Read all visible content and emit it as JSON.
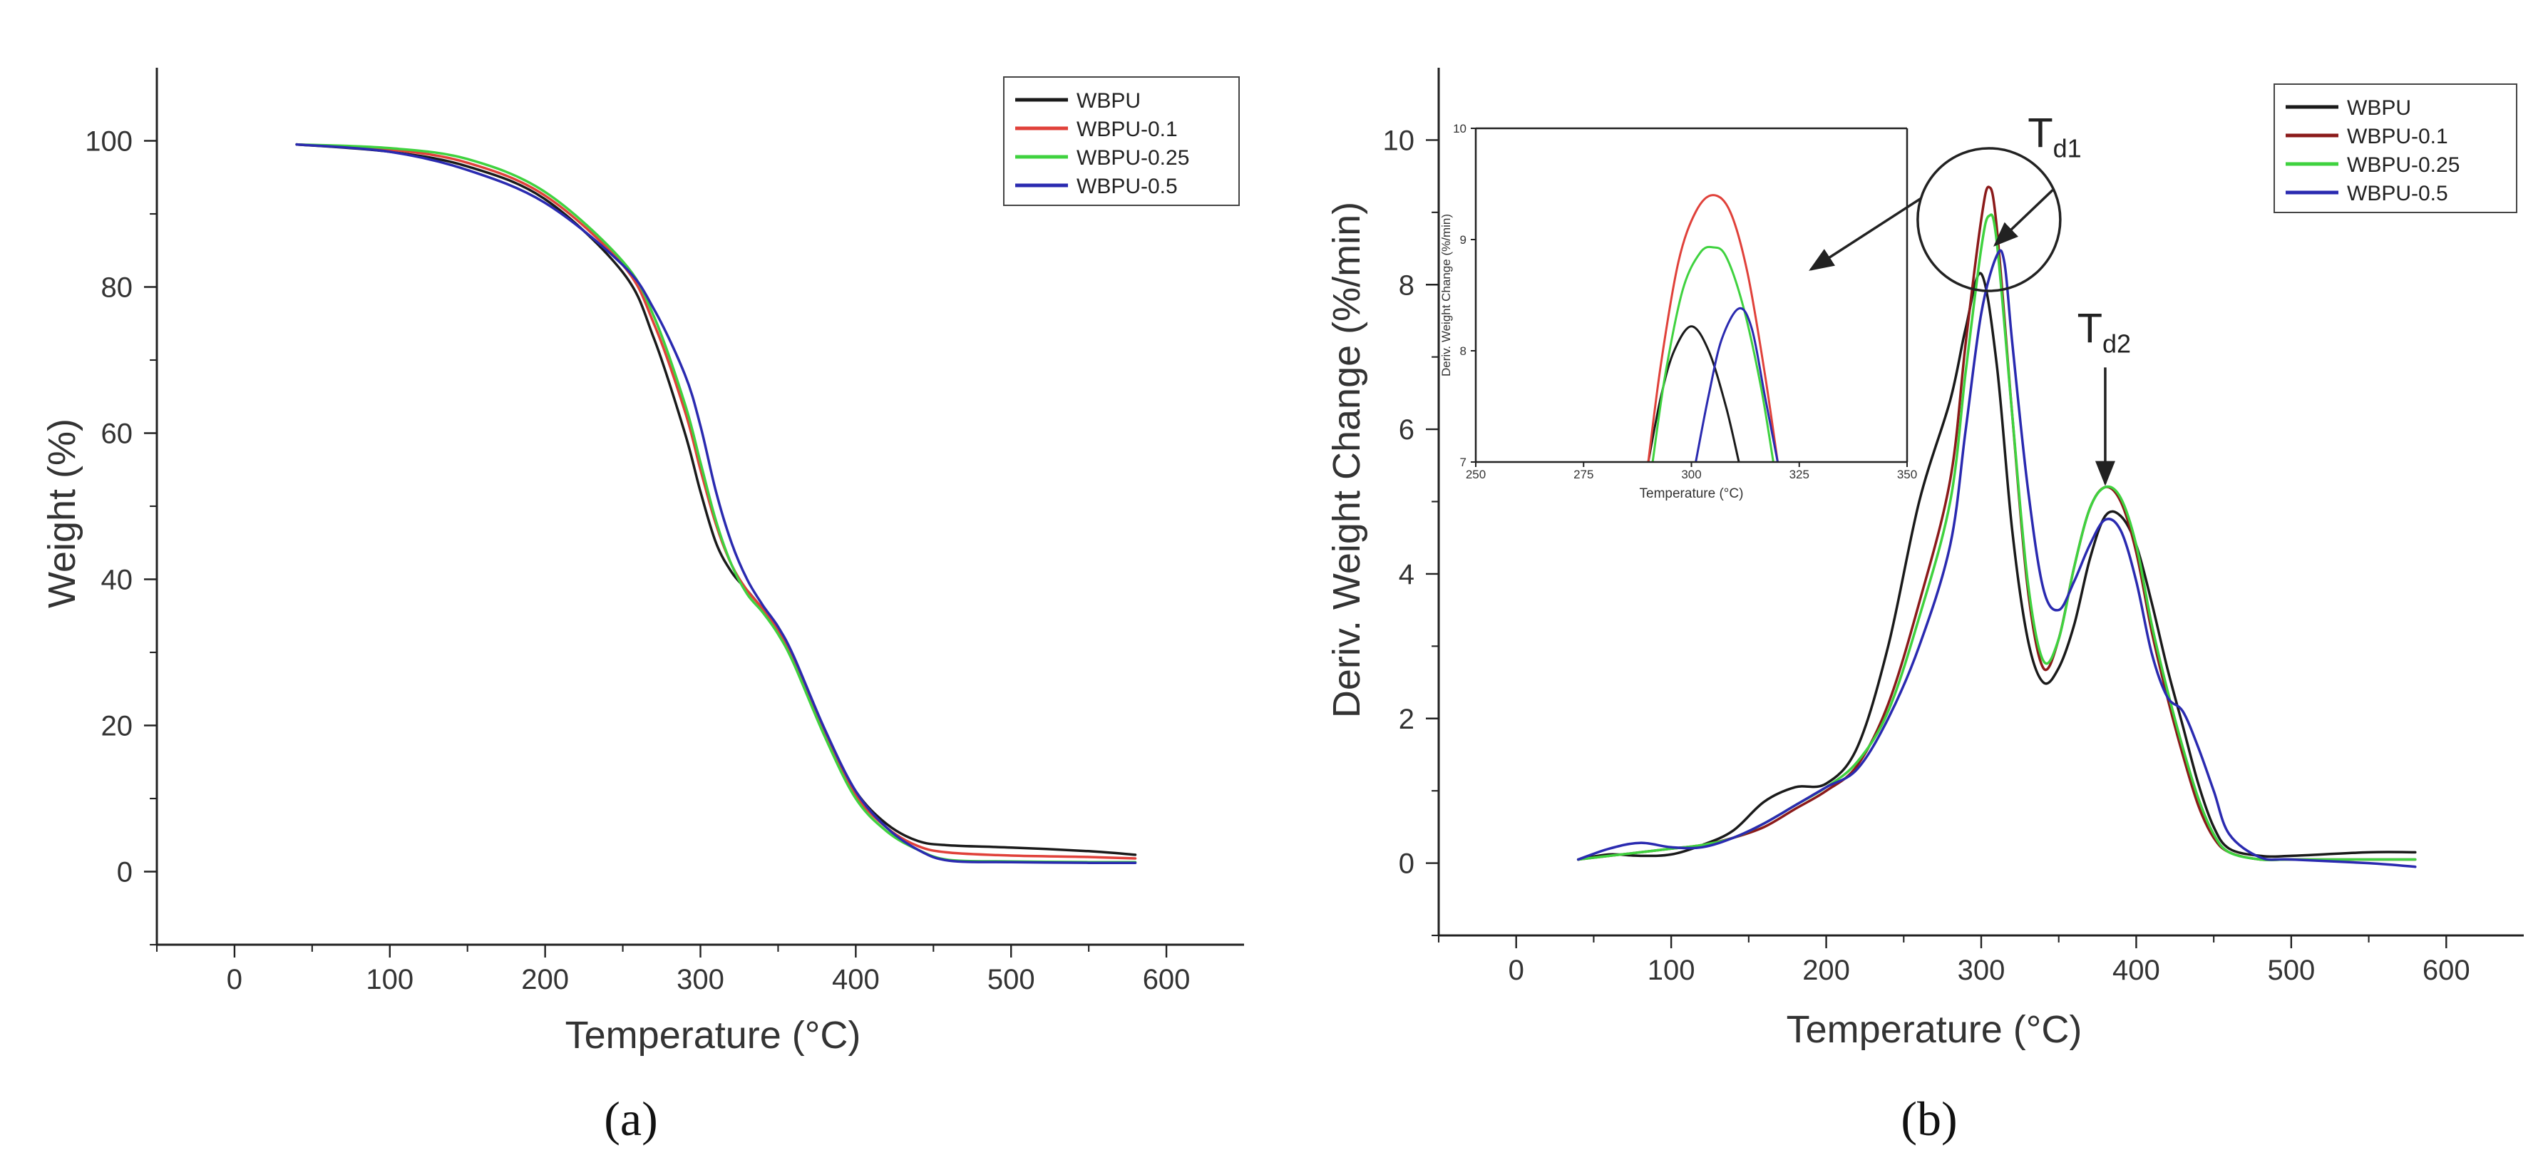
{
  "figure": {
    "caption_a": "(a)",
    "caption_b": "(b)"
  },
  "chart_data": [
    {
      "type": "line",
      "panel": "a",
      "title": "",
      "xlabel": "Temperature (°C)",
      "ylabel": "Weight (%)",
      "xlim": [
        -50,
        650
      ],
      "ylim": [
        -10,
        110
      ],
      "xticks": [
        0,
        100,
        200,
        300,
        400,
        500,
        600
      ],
      "yticks": [
        0,
        20,
        40,
        60,
        80,
        100
      ],
      "legend_position": "top-right",
      "series": [
        {
          "name": "WBPU",
          "color": "#1a1a1a",
          "x": [
            40,
            100,
            150,
            200,
            250,
            270,
            290,
            300,
            310,
            320,
            330,
            340,
            350,
            360,
            380,
            400,
            420,
            440,
            460,
            500,
            550,
            580
          ],
          "y": [
            99.5,
            98.5,
            96.5,
            92,
            82,
            73,
            60,
            52,
            45,
            41,
            38.5,
            36,
            33.5,
            29,
            19,
            11,
            6.5,
            4.2,
            3.6,
            3.3,
            2.8,
            2.3
          ]
        },
        {
          "name": "WBPU-0.1",
          "color": "#e0413a",
          "x": [
            40,
            100,
            150,
            200,
            250,
            270,
            290,
            300,
            310,
            320,
            330,
            340,
            350,
            360,
            380,
            400,
            420,
            440,
            460,
            500,
            550,
            580
          ],
          "y": [
            99.5,
            98.8,
            97,
            92.5,
            83,
            75,
            63,
            55,
            47.5,
            42,
            38.5,
            36,
            33,
            29,
            19,
            10.5,
            6,
            3.5,
            2.6,
            2.2,
            2.0,
            1.8
          ]
        },
        {
          "name": "WBPU-0.25",
          "color": "#3fd23f",
          "x": [
            40,
            100,
            150,
            200,
            250,
            270,
            290,
            300,
            310,
            320,
            330,
            340,
            350,
            360,
            380,
            400,
            420,
            440,
            460,
            500,
            550,
            580
          ],
          "y": [
            99.5,
            99,
            97.5,
            93,
            83.5,
            76,
            64,
            56,
            48,
            42,
            38,
            35.5,
            32.5,
            28.5,
            18.5,
            10,
            5.5,
            3,
            1.6,
            1.4,
            1.3,
            1.3
          ]
        },
        {
          "name": "WBPU-0.5",
          "color": "#2a2ab0",
          "x": [
            40,
            100,
            150,
            200,
            250,
            270,
            290,
            300,
            310,
            320,
            330,
            340,
            350,
            360,
            380,
            400,
            420,
            440,
            460,
            500,
            550,
            580
          ],
          "y": [
            99.5,
            98.5,
            96,
            91.5,
            83,
            77,
            68,
            61,
            52,
            45,
            40,
            36.5,
            33.5,
            29.5,
            19.5,
            11,
            6,
            3,
            1.5,
            1.3,
            1.2,
            1.2
          ]
        }
      ]
    },
    {
      "type": "line",
      "panel": "b",
      "title": "",
      "xlabel": "Temperature (°C)",
      "ylabel": "Deriv. Weight Change (%/min)",
      "xlim": [
        -50,
        650
      ],
      "ylim": [
        -1,
        11
      ],
      "xticks": [
        0,
        100,
        200,
        300,
        400,
        500,
        600
      ],
      "yticks": [
        0,
        2,
        4,
        6,
        8,
        10
      ],
      "legend_position": "top-right",
      "annotations": [
        {
          "text": "T",
          "sub": "d1",
          "x": 330,
          "y": 9.9
        },
        {
          "text": "T",
          "sub": "d2",
          "x": 378,
          "y": 7.2
        }
      ],
      "series": [
        {
          "name": "WBPU",
          "color": "#1a1a1a",
          "x": [
            40,
            60,
            80,
            100,
            120,
            140,
            160,
            180,
            200,
            220,
            240,
            260,
            280,
            290,
            300,
            310,
            320,
            330,
            340,
            350,
            360,
            370,
            380,
            390,
            400,
            410,
            420,
            430,
            440,
            450,
            460,
            480,
            500,
            550,
            580
          ],
          "y": [
            0.05,
            0.12,
            0.1,
            0.12,
            0.25,
            0.45,
            0.85,
            1.05,
            1.1,
            1.6,
            3.0,
            5.0,
            6.4,
            7.4,
            8.15,
            6.9,
            4.6,
            3.1,
            2.5,
            2.7,
            3.3,
            4.2,
            4.8,
            4.8,
            4.4,
            3.6,
            2.7,
            1.9,
            1.1,
            0.5,
            0.2,
            0.1,
            0.1,
            0.15,
            0.15
          ]
        },
        {
          "name": "WBPU-0.1",
          "color": "#8b1a1a",
          "x": [
            40,
            60,
            80,
            100,
            120,
            140,
            160,
            180,
            200,
            220,
            240,
            260,
            280,
            290,
            300,
            305,
            310,
            320,
            330,
            340,
            350,
            360,
            370,
            380,
            390,
            400,
            410,
            420,
            430,
            440,
            450,
            460,
            480,
            500,
            550,
            580
          ],
          "y": [
            0.05,
            0.1,
            0.15,
            0.2,
            0.25,
            0.35,
            0.5,
            0.75,
            1.0,
            1.35,
            2.2,
            3.6,
            5.3,
            7.2,
            8.9,
            9.35,
            8.8,
            6.2,
            3.8,
            2.7,
            3.1,
            4.1,
            4.9,
            5.2,
            5.0,
            4.3,
            3.2,
            2.3,
            1.5,
            0.8,
            0.35,
            0.15,
            0.05,
            0.05,
            0.05,
            0.05
          ]
        },
        {
          "name": "WBPU-0.25",
          "color": "#3fd23f",
          "x": [
            40,
            60,
            80,
            100,
            120,
            140,
            160,
            180,
            200,
            220,
            240,
            260,
            280,
            290,
            300,
            305,
            310,
            320,
            330,
            340,
            350,
            360,
            370,
            380,
            390,
            400,
            410,
            420,
            430,
            440,
            450,
            460,
            480,
            500,
            550,
            580
          ],
          "y": [
            0.05,
            0.1,
            0.15,
            0.2,
            0.25,
            0.35,
            0.55,
            0.8,
            1.05,
            1.4,
            2.1,
            3.4,
            5.0,
            6.8,
            8.5,
            8.95,
            8.6,
            6.2,
            3.9,
            2.8,
            3.1,
            4.1,
            4.9,
            5.2,
            5.05,
            4.4,
            3.3,
            2.4,
            1.6,
            0.9,
            0.4,
            0.15,
            0.05,
            0.05,
            0.05,
            0.05
          ]
        },
        {
          "name": "WBPU-0.5",
          "color": "#2a2ab0",
          "x": [
            40,
            60,
            80,
            100,
            120,
            140,
            160,
            180,
            200,
            220,
            240,
            260,
            280,
            290,
            300,
            310,
            315,
            320,
            330,
            340,
            350,
            360,
            370,
            380,
            390,
            400,
            410,
            420,
            430,
            440,
            450,
            460,
            480,
            500,
            550,
            580
          ],
          "y": [
            0.05,
            0.2,
            0.28,
            0.22,
            0.22,
            0.35,
            0.55,
            0.8,
            1.05,
            1.3,
            2.0,
            3.0,
            4.4,
            6.0,
            7.6,
            8.4,
            8.3,
            7.2,
            5.2,
            3.8,
            3.5,
            3.9,
            4.4,
            4.75,
            4.6,
            3.9,
            2.9,
            2.3,
            2.1,
            1.6,
            1.0,
            0.4,
            0.08,
            0.05,
            0.0,
            -0.05
          ]
        }
      ],
      "inset": {
        "type": "line",
        "xlabel": "Temperature (°C)",
        "ylabel": "Deriv. Weight Change (%/min)",
        "xlim": [
          250,
          350
        ],
        "ylim": [
          7,
          10
        ],
        "xticks": [
          250,
          275,
          300,
          325,
          350
        ],
        "yticks": [
          7,
          8,
          9,
          10
        ],
        "series": [
          {
            "name": "WBPU",
            "color": "#1a1a1a",
            "x": [
              290,
              293,
              296,
              300,
              304,
              308,
              311
            ],
            "y": [
              7.0,
              7.6,
              8.0,
              8.22,
              8.0,
              7.5,
              7.0
            ]
          },
          {
            "name": "WBPU-0.1",
            "color": "#e0413a",
            "x": [
              290,
              293,
              297,
              301,
              305,
              309,
              313,
              317,
              320
            ],
            "y": [
              7.0,
              7.9,
              8.8,
              9.25,
              9.4,
              9.25,
              8.7,
              7.8,
              7.0
            ]
          },
          {
            "name": "WBPU-0.25",
            "color": "#3fd23f",
            "x": [
              291,
              294,
              298,
              302,
              305,
              308,
              312,
              316,
              319
            ],
            "y": [
              7.0,
              7.8,
              8.55,
              8.88,
              8.93,
              8.85,
              8.4,
              7.7,
              7.0
            ]
          },
          {
            "name": "WBPU-0.5",
            "color": "#2a2ab0",
            "x": [
              301,
              304,
              307,
              311,
              314,
              317,
              320
            ],
            "y": [
              7.0,
              7.6,
              8.1,
              8.38,
              8.2,
              7.6,
              7.0
            ]
          }
        ]
      }
    }
  ]
}
